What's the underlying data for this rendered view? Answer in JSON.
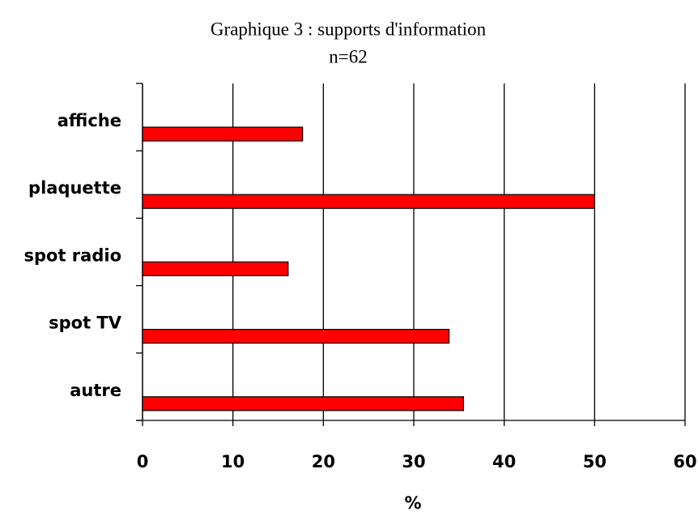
{
  "chart_data": {
    "type": "bar",
    "orientation": "horizontal",
    "title": "Graphique 3 : supports d'information",
    "subtitle": "n=62",
    "x_label": "%",
    "categories": [
      "affiche",
      "plaquette",
      "spot radio",
      "spot TV",
      "autre"
    ],
    "values": [
      17.7,
      50,
      16.1,
      33.9,
      35.5
    ],
    "color": "#ff0000",
    "xlim": [
      0,
      60
    ],
    "xticks": [
      0,
      10,
      20,
      30,
      40,
      50,
      60
    ],
    "grid": true
  }
}
